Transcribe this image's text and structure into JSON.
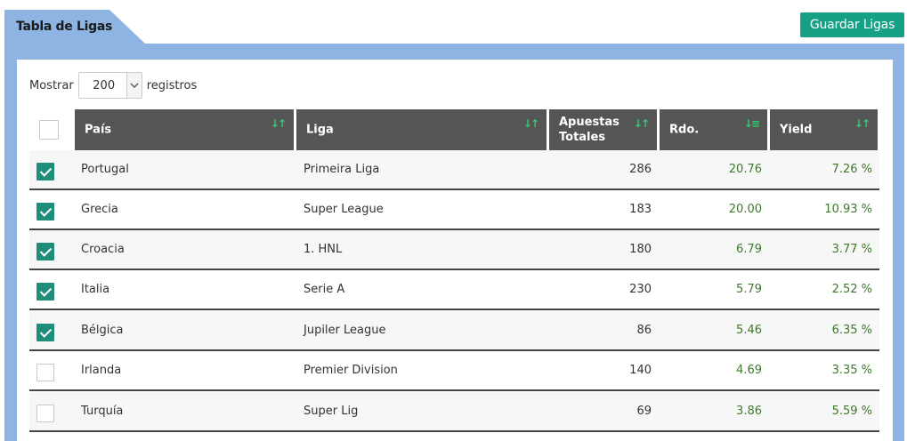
{
  "header": {
    "tab_title": "Tabla de Ligas",
    "save_label": "Guardar Ligas"
  },
  "length_menu": {
    "prefix": "Mostrar",
    "value": "200",
    "suffix": "registros"
  },
  "table": {
    "columns": [
      {
        "label": "País",
        "sort_icon": "sort-both-icon"
      },
      {
        "label": "Liga",
        "sort_icon": "sort-both-icon"
      },
      {
        "label": "Apuestas Totales",
        "sort_icon": "sort-both-icon"
      },
      {
        "label": "Rdo.",
        "sort_icon": "sort-desc-icon"
      },
      {
        "label": "Yield",
        "sort_icon": "sort-both-icon"
      }
    ],
    "rows": [
      {
        "checked": true,
        "pais": "Portugal",
        "liga": "Primeira Liga",
        "apuestas": "286",
        "rdo": "20.76",
        "yield": "7.26 %"
      },
      {
        "checked": true,
        "pais": "Grecia",
        "liga": "Super League",
        "apuestas": "183",
        "rdo": "20.00",
        "yield": "10.93 %"
      },
      {
        "checked": true,
        "pais": "Croacia",
        "liga": "1. HNL",
        "apuestas": "180",
        "rdo": "6.79",
        "yield": "3.77 %"
      },
      {
        "checked": true,
        "pais": "Italia",
        "liga": "Serie A",
        "apuestas": "230",
        "rdo": "5.79",
        "yield": "2.52 %"
      },
      {
        "checked": true,
        "pais": "Bélgica",
        "liga": "Jupiler League",
        "apuestas": "86",
        "rdo": "5.46",
        "yield": "6.35 %"
      },
      {
        "checked": false,
        "pais": "Irlanda",
        "liga": "Premier Division",
        "apuestas": "140",
        "rdo": "4.69",
        "yield": "3.35 %"
      },
      {
        "checked": false,
        "pais": "Turquía",
        "liga": "Super Lig",
        "apuestas": "69",
        "rdo": "3.86",
        "yield": "5.59 %"
      }
    ]
  },
  "colors": {
    "accent": "#16a085",
    "panel": "#8db4e2",
    "header_bg": "#555555",
    "positive": "#3d7a2a"
  }
}
